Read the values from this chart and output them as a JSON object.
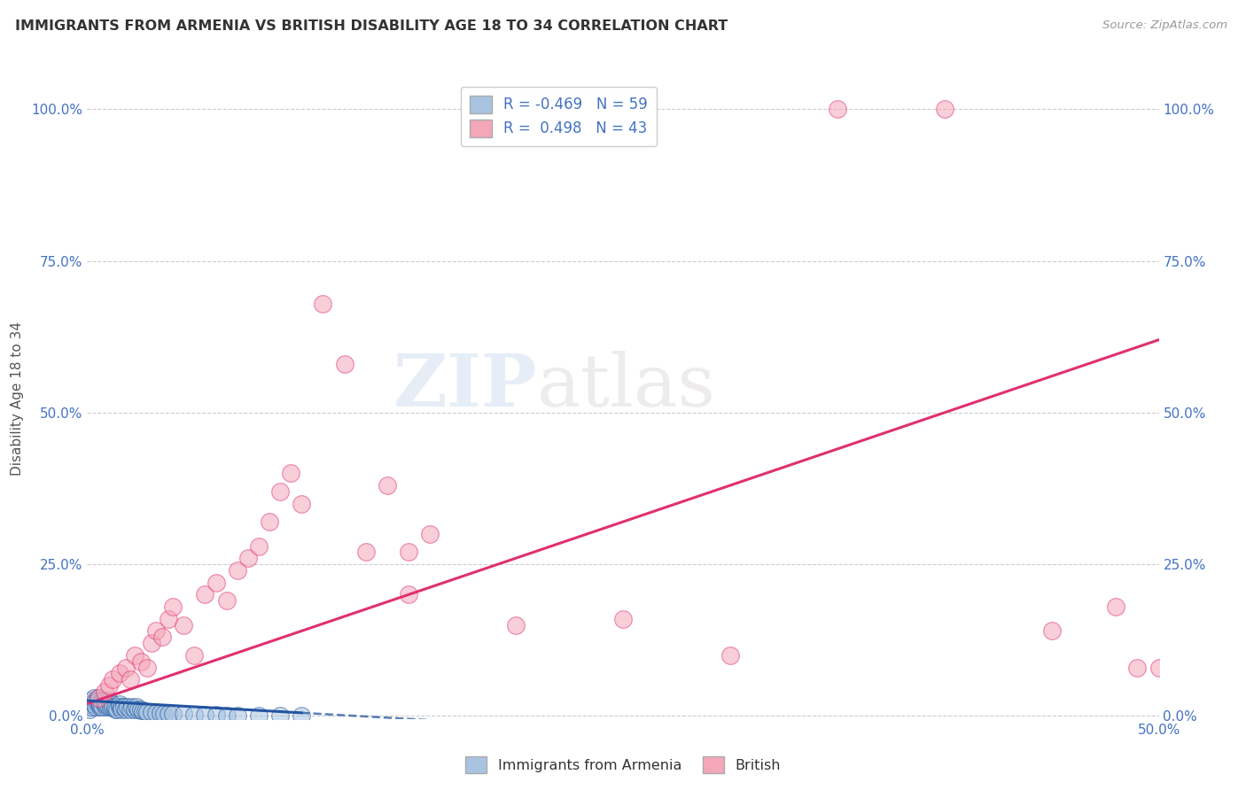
{
  "title": "IMMIGRANTS FROM ARMENIA VS BRITISH DISABILITY AGE 18 TO 34 CORRELATION CHART",
  "source": "Source: ZipAtlas.com",
  "ylabel": "Disability Age 18 to 34",
  "legend_armenia": "Immigrants from Armenia",
  "legend_british": "British",
  "r_armenia": -0.469,
  "n_armenia": 59,
  "r_british": 0.498,
  "n_british": 43,
  "xlim": [
    0.0,
    0.5
  ],
  "ylim": [
    -0.005,
    1.05
  ],
  "yticks": [
    0.0,
    0.25,
    0.5,
    0.75,
    1.0
  ],
  "ytick_labels": [
    "0.0%",
    "25.0%",
    "50.0%",
    "75.0%",
    "100.0%"
  ],
  "color_armenia": "#a8c4e0",
  "color_british": "#f4a7b9",
  "color_armenia_line": "#2255a0",
  "color_british_line": "#e03070",
  "background_color": "#ffffff",
  "watermark_zip": "ZIP",
  "watermark_atlas": "atlas",
  "armenia_x": [
    0.001,
    0.001,
    0.002,
    0.002,
    0.003,
    0.003,
    0.004,
    0.004,
    0.005,
    0.005,
    0.005,
    0.006,
    0.006,
    0.007,
    0.007,
    0.008,
    0.008,
    0.009,
    0.009,
    0.01,
    0.01,
    0.011,
    0.011,
    0.012,
    0.012,
    0.013,
    0.013,
    0.014,
    0.015,
    0.015,
    0.016,
    0.016,
    0.017,
    0.018,
    0.019,
    0.02,
    0.021,
    0.022,
    0.023,
    0.024,
    0.025,
    0.026,
    0.027,
    0.028,
    0.03,
    0.032,
    0.034,
    0.036,
    0.038,
    0.04,
    0.045,
    0.05,
    0.055,
    0.06,
    0.065,
    0.07,
    0.08,
    0.09,
    0.1
  ],
  "armenia_y": [
    0.01,
    0.02,
    0.015,
    0.025,
    0.02,
    0.03,
    0.025,
    0.015,
    0.03,
    0.02,
    0.025,
    0.015,
    0.02,
    0.025,
    0.015,
    0.02,
    0.025,
    0.015,
    0.02,
    0.025,
    0.015,
    0.02,
    0.015,
    0.02,
    0.015,
    0.01,
    0.015,
    0.01,
    0.015,
    0.02,
    0.015,
    0.01,
    0.015,
    0.01,
    0.015,
    0.01,
    0.015,
    0.01,
    0.015,
    0.01,
    0.01,
    0.008,
    0.008,
    0.006,
    0.006,
    0.005,
    0.005,
    0.004,
    0.004,
    0.003,
    0.003,
    0.002,
    0.002,
    0.002,
    0.001,
    0.001,
    0.001,
    0.001,
    0.001
  ],
  "british_x": [
    0.005,
    0.008,
    0.01,
    0.012,
    0.015,
    0.018,
    0.02,
    0.022,
    0.025,
    0.028,
    0.03,
    0.032,
    0.035,
    0.038,
    0.04,
    0.045,
    0.05,
    0.055,
    0.06,
    0.065,
    0.07,
    0.075,
    0.08,
    0.085,
    0.09,
    0.095,
    0.1,
    0.11,
    0.12,
    0.13,
    0.14,
    0.15,
    0.16,
    0.2,
    0.25,
    0.3,
    0.35,
    0.4,
    0.45,
    0.48,
    0.49,
    0.5,
    0.15
  ],
  "british_y": [
    0.03,
    0.04,
    0.05,
    0.06,
    0.07,
    0.08,
    0.06,
    0.1,
    0.09,
    0.08,
    0.12,
    0.14,
    0.13,
    0.16,
    0.18,
    0.15,
    0.1,
    0.2,
    0.22,
    0.19,
    0.24,
    0.26,
    0.28,
    0.32,
    0.37,
    0.4,
    0.35,
    0.68,
    0.58,
    0.27,
    0.38,
    0.2,
    0.3,
    0.15,
    0.16,
    0.1,
    1.0,
    1.0,
    0.14,
    0.18,
    0.08,
    0.08,
    0.27
  ],
  "brit_line_x": [
    0.0,
    0.5
  ],
  "brit_line_y": [
    0.02,
    0.62
  ],
  "arm_line_x0": 0.0,
  "arm_line_x1": 0.1,
  "arm_line_dash_x1": 0.32,
  "arm_line_y0": 0.025,
  "arm_line_y1": 0.005
}
